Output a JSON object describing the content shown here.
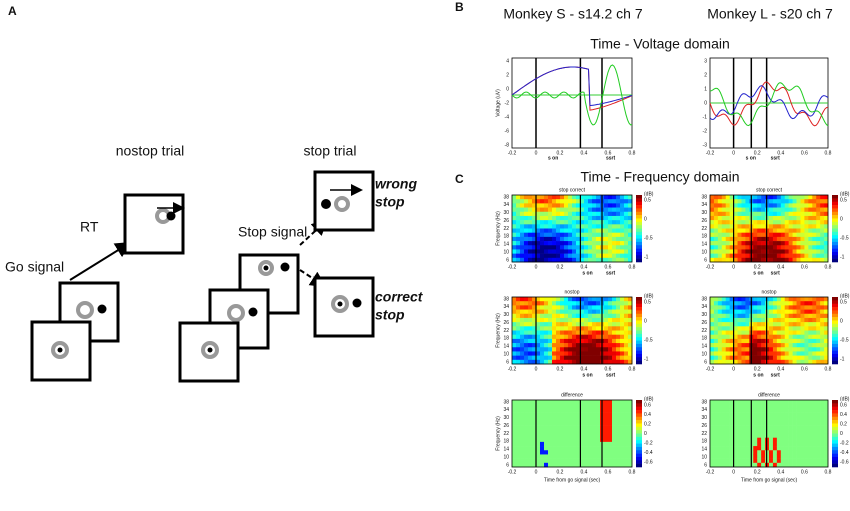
{
  "panel_a": {
    "label": "A",
    "nostop_title": "nostop trial",
    "stop_title": "stop trial",
    "rt": "RT",
    "go_signal": "Go signal",
    "stop_signal": "Stop signal",
    "wrong_stop": [
      "wrong",
      "stop"
    ],
    "correct_stop": [
      "correct",
      "stop"
    ]
  },
  "panel_b": {
    "label": "B",
    "monkeys": [
      "Monkey S - s14.2 ch 7",
      "Monkey L - s20 ch 7"
    ],
    "domain": "Time - Voltage domain",
    "ylabel": "Voltage (uV)",
    "xticks": [
      -0.2,
      0,
      0.2,
      0.4,
      0.6,
      0.8
    ],
    "yticks": [
      [
        4,
        2,
        0,
        -2,
        -4,
        -6,
        -8
      ],
      [
        3,
        2,
        1,
        0,
        -1,
        -2,
        -3
      ]
    ],
    "markers": [
      "s on",
      "ssrt"
    ]
  },
  "panel_c": {
    "label": "C",
    "domain": "Time - Frequency domain",
    "subtitles": [
      "stop correct",
      "nostop",
      "difference"
    ],
    "ylabel": "Frequency (Hz)",
    "yticks": [
      6,
      10,
      14,
      18,
      22,
      26,
      30,
      34,
      38
    ],
    "xticks": [
      -0.2,
      0,
      0.2,
      0.4,
      0.6,
      0.8
    ],
    "markers": [
      "s on",
      "ssrt"
    ],
    "cbar_unit": "(dB)",
    "cbar_ticks": [
      [
        0.5,
        0,
        -0.5,
        -1
      ],
      [
        0.6,
        0.4,
        0.2,
        0,
        -0.2,
        -0.4,
        -0.6
      ]
    ],
    "xlabel": "Time from go signal (sec)"
  }
}
